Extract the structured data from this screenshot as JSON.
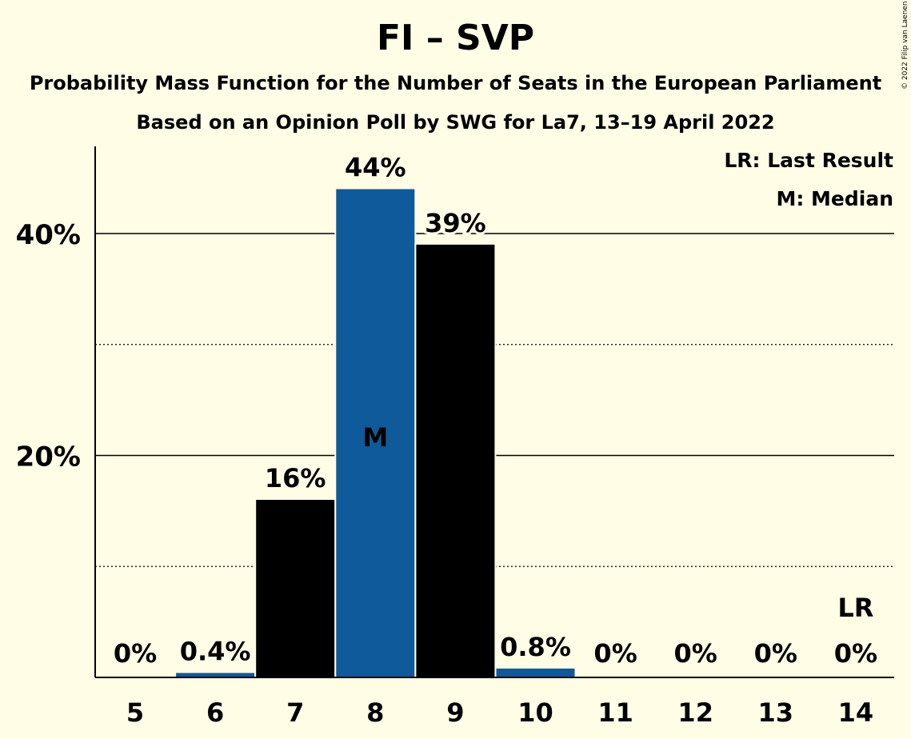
{
  "title": "FI – SVP",
  "subtitle": "Probability Mass Function for the Number of Seats in the European Parliament",
  "source": "Based on an Opinion Poll by SWG for La7, 13–19 April 2022",
  "copyright": "© 2022 Filip van Laenen",
  "legend": {
    "last_result": "LR: Last Result",
    "median": "M: Median"
  },
  "colors": {
    "background": "#fffde6",
    "party": "#0e5a9a",
    "bar": "#000000"
  },
  "chart_data": {
    "type": "bar",
    "categories": [
      "5",
      "6",
      "7",
      "8",
      "9",
      "10",
      "11",
      "12",
      "13",
      "14"
    ],
    "values": [
      0,
      0.4,
      16,
      44,
      39,
      0.8,
      0,
      0,
      0,
      0
    ],
    "value_labels": [
      "0%",
      "0.4%",
      "16%",
      "44%",
      "39%",
      "0.8%",
      "0%",
      "0%",
      "0%",
      "0%"
    ],
    "bar_colors": [
      "party",
      "party",
      "bar",
      "party",
      "bar",
      "party",
      "bar",
      "party",
      "bar",
      "party"
    ],
    "median_category": "8",
    "median_marker": "M",
    "last_result_category": "14",
    "last_result_marker": "LR",
    "y_ticks": [
      20,
      40
    ],
    "y_tick_labels": [
      "20%",
      "40%"
    ],
    "y_minor_ticks": [
      10,
      30
    ],
    "ylim": [
      0,
      48
    ],
    "grid": true,
    "legend_position": "top-right"
  }
}
